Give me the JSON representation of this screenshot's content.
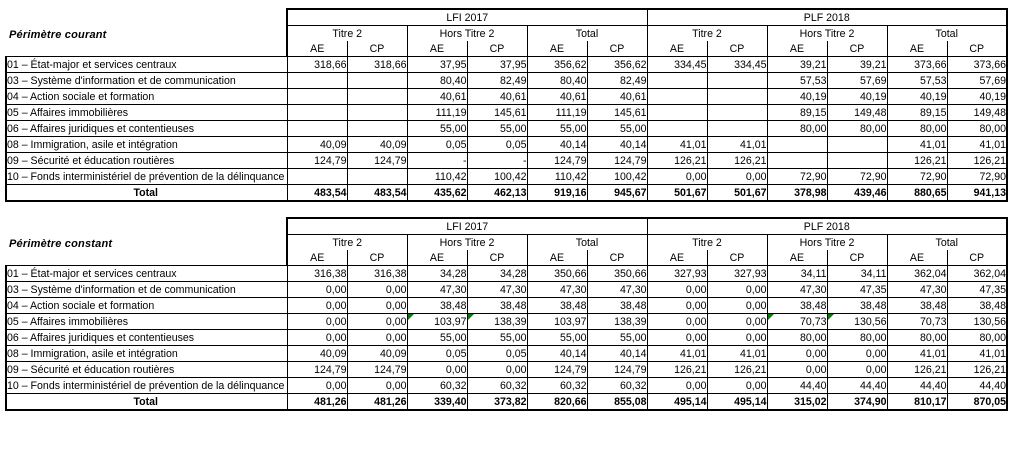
{
  "colors": {
    "flag_green": "#008000",
    "border": "#000000",
    "background": "#ffffff"
  },
  "tables": [
    {
      "id": "perimetre-courant",
      "caption": "Périmètre courant",
      "col_groups": [
        "LFI 2017",
        "PLF 2018"
      ],
      "sub_groups": [
        "Titre 2",
        "Hors Titre 2",
        "Total"
      ],
      "sub_cols": [
        "AE",
        "CP"
      ],
      "rows": [
        {
          "label": "01 – État-major et services centraux",
          "values": [
            "318,66",
            "318,66",
            "37,95",
            "37,95",
            "356,62",
            "356,62",
            "334,45",
            "334,45",
            "39,21",
            "39,21",
            "373,66",
            "373,66"
          ]
        },
        {
          "label": "03 – Système d'information et de communication",
          "values": [
            "",
            "",
            "80,40",
            "82,49",
            "80,40",
            "82,49",
            "",
            "",
            "57,53",
            "57,69",
            "57,53",
            "57,69"
          ]
        },
        {
          "label": "04 – Action sociale et formation",
          "values": [
            "",
            "",
            "40,61",
            "40,61",
            "40,61",
            "40,61",
            "",
            "",
            "40,19",
            "40,19",
            "40,19",
            "40,19"
          ]
        },
        {
          "label": "05 – Affaires immobilières",
          "values": [
            "",
            "",
            "111,19",
            "145,61",
            "111,19",
            "145,61",
            "",
            "",
            "89,15",
            "149,48",
            "89,15",
            "149,48"
          ]
        },
        {
          "label": "06 – Affaires juridiques et contentieuses",
          "values": [
            "",
            "",
            "55,00",
            "55,00",
            "55,00",
            "55,00",
            "",
            "",
            "80,00",
            "80,00",
            "80,00",
            "80,00"
          ]
        },
        {
          "label": "08 – Immigration, asile et intégration",
          "values": [
            "40,09",
            "40,09",
            "0,05",
            "0,05",
            "40,14",
            "40,14",
            "41,01",
            "41,01",
            "",
            "",
            "41,01",
            "41,01"
          ]
        },
        {
          "label": "09 – Sécurité et éducation routières",
          "values": [
            "124,79",
            "124,79",
            "-",
            "-",
            "124,79",
            "124,79",
            "126,21",
            "126,21",
            "",
            "",
            "126,21",
            "126,21"
          ]
        },
        {
          "label": "10 – Fonds interministériel de prévention de la délinquance",
          "values": [
            "",
            "",
            "110,42",
            "100,42",
            "110,42",
            "100,42",
            "0,00",
            "0,00",
            "72,90",
            "72,90",
            "72,90",
            "72,90"
          ]
        }
      ],
      "total": {
        "label": "Total",
        "values": [
          "483,54",
          "483,54",
          "435,62",
          "462,13",
          "919,16",
          "945,67",
          "501,67",
          "501,67",
          "378,98",
          "439,46",
          "880,65",
          "941,13"
        ]
      }
    },
    {
      "id": "perimetre-constant",
      "caption": "Périmètre constant",
      "col_groups": [
        "LFI 2017",
        "PLF 2018"
      ],
      "sub_groups": [
        "Titre 2",
        "Hors Titre 2",
        "Total"
      ],
      "sub_cols": [
        "AE",
        "CP"
      ],
      "rows": [
        {
          "label": "01 – État-major et services centraux",
          "values": [
            "316,38",
            "316,38",
            "34,28",
            "34,28",
            "350,66",
            "350,66",
            "327,93",
            "327,93",
            "34,11",
            "34,11",
            "362,04",
            "362,04"
          ]
        },
        {
          "label": "03 – Système d'information et de communication",
          "values": [
            "0,00",
            "0,00",
            "47,30",
            "47,30",
            "47,30",
            "47,30",
            "0,00",
            "0,00",
            "47,30",
            "47,35",
            "47,30",
            "47,35"
          ]
        },
        {
          "label": "04 – Action sociale et formation",
          "values": [
            "0,00",
            "0,00",
            "38,48",
            "38,48",
            "38,48",
            "38,48",
            "0,00",
            "0,00",
            "38,48",
            "38,48",
            "38,48",
            "38,48"
          ]
        },
        {
          "label": "05 – Affaires immobilières",
          "values": [
            "0,00",
            "0,00",
            "103,97",
            "138,39",
            "103,97",
            "138,39",
            "0,00",
            "0,00",
            "70,73",
            "130,56",
            "70,73",
            "130,56"
          ],
          "flagged": [
            2,
            3,
            8,
            9
          ]
        },
        {
          "label": "06 – Affaires juridiques et contentieuses",
          "values": [
            "0,00",
            "0,00",
            "55,00",
            "55,00",
            "55,00",
            "55,00",
            "0,00",
            "0,00",
            "80,00",
            "80,00",
            "80,00",
            "80,00"
          ]
        },
        {
          "label": "08 – Immigration, asile et intégration",
          "values": [
            "40,09",
            "40,09",
            "0,05",
            "0,05",
            "40,14",
            "40,14",
            "41,01",
            "41,01",
            "0,00",
            "0,00",
            "41,01",
            "41,01"
          ]
        },
        {
          "label": "09 – Sécurité et éducation routières",
          "values": [
            "124,79",
            "124,79",
            "0,00",
            "0,00",
            "124,79",
            "124,79",
            "126,21",
            "126,21",
            "0,00",
            "0,00",
            "126,21",
            "126,21"
          ]
        },
        {
          "label": "10 – Fonds interministériel de prévention de la délinquance",
          "values": [
            "0,00",
            "0,00",
            "60,32",
            "60,32",
            "60,32",
            "60,32",
            "0,00",
            "0,00",
            "44,40",
            "44,40",
            "44,40",
            "44,40"
          ]
        }
      ],
      "total": {
        "label": "Total",
        "values": [
          "481,26",
          "481,26",
          "339,40",
          "373,82",
          "820,66",
          "855,08",
          "495,14",
          "495,14",
          "315,02",
          "374,90",
          "810,17",
          "870,05"
        ]
      }
    }
  ]
}
